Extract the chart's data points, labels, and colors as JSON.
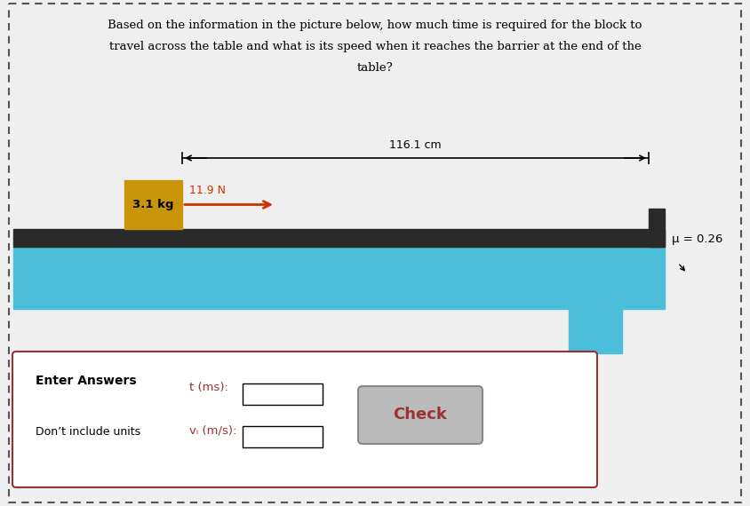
{
  "title_line1": "Based on the information in the picture below, how much time is required for the block to",
  "title_line2": "travel across the table and what is its speed when it reaches the barrier at the end of the",
  "title_line3": "table?",
  "bg_color": "#efefef",
  "table_top_color": "#2a2a2a",
  "table_body_color": "#4bbfd9",
  "table_leg_color": "#4bbfd9",
  "barrier_color": "#2a2a2a",
  "block_color": "#c8940a",
  "block_label": "3.1 kg",
  "force_label": "11.9 N",
  "force_color": "#cc3300",
  "distance_label": "116.1 cm",
  "mu_label": "μ = 0.26",
  "answer_box_border": "#993333",
  "check_btn_color": "#bbbbbb",
  "check_btn_border": "#888888",
  "check_btn_text": "Check",
  "t_label": "t (ms):",
  "vf_label": "vᵢ (m/s):",
  "enter_label": "Enter Answers",
  "dont_label": "Don’t include units",
  "dash_color": "#555555"
}
